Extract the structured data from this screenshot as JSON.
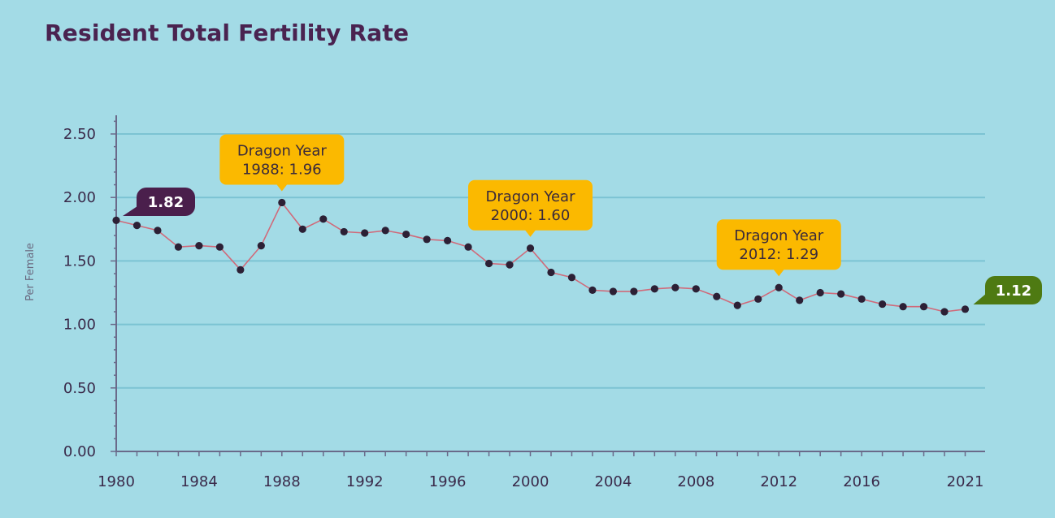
{
  "chart_data": {
    "type": "line",
    "title": "Resident Total Fertility Rate",
    "ylabel": "Per Female",
    "xlabel": "",
    "ylim": [
      0,
      2.5
    ],
    "xlim": [
      1980,
      2021
    ],
    "yticks": [
      "0.00",
      "0.50",
      "1.00",
      "1.50",
      "2.00",
      "2.50"
    ],
    "xticks": [
      "1980",
      "1984",
      "1988",
      "1992",
      "1996",
      "2000",
      "2004",
      "2008",
      "2012",
      "2016",
      "2021"
    ],
    "grid": true,
    "series": [
      {
        "color": "#d06a7a",
        "x": [
          1980,
          1981,
          1982,
          1983,
          1984,
          1985,
          1986,
          1987,
          1988,
          1989,
          1990,
          1991,
          1992,
          1993,
          1994,
          1995,
          1996,
          1997,
          1998,
          1999,
          2000,
          2001,
          2002,
          2003,
          2004,
          2005,
          2006,
          2007,
          2008,
          2009,
          2010,
          2011,
          2012,
          2013,
          2014,
          2015,
          2016,
          2017,
          2018,
          2019,
          2020,
          2021
        ],
        "values": [
          1.82,
          1.78,
          1.74,
          1.61,
          1.62,
          1.61,
          1.43,
          1.62,
          1.96,
          1.75,
          1.83,
          1.73,
          1.72,
          1.74,
          1.71,
          1.67,
          1.66,
          1.61,
          1.48,
          1.47,
          1.6,
          1.41,
          1.37,
          1.27,
          1.26,
          1.26,
          1.28,
          1.29,
          1.28,
          1.22,
          1.15,
          1.2,
          1.29,
          1.19,
          1.25,
          1.24,
          1.2,
          1.16,
          1.14,
          1.14,
          1.1,
          1.12
        ]
      }
    ],
    "annotations": [
      {
        "year": 1988,
        "value": 1.96,
        "line1": "Dragon Year",
        "line2": "1988: 1.96"
      },
      {
        "year": 2000,
        "value": 1.6,
        "line1": "Dragon Year",
        "line2": "2000: 1.60"
      },
      {
        "year": 2012,
        "value": 1.29,
        "line1": "Dragon Year",
        "line2": "2012: 1.29"
      }
    ],
    "start_badge": {
      "label": "1.82",
      "color": "#4a1f4c"
    },
    "end_badge": {
      "label": "1.12",
      "color": "#4e7a12"
    },
    "colors": {
      "annotation_bg": "#fbb900",
      "background": "#a3dbe6"
    }
  }
}
